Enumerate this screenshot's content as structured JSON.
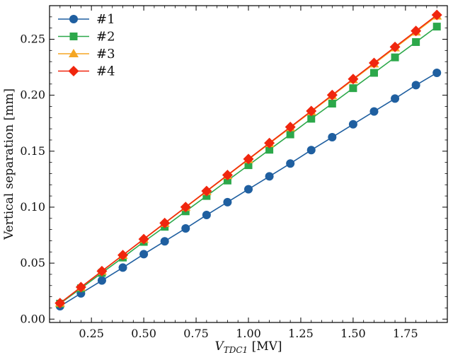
{
  "chart_data": {
    "type": "line",
    "xlabel_main": "V",
    "xlabel_sub": "TDC1",
    "xlabel_unit": " [MV]",
    "ylabel": "Vertical separation [mm]",
    "xlim": [
      0.05,
      1.95
    ],
    "ylim": [
      -0.003,
      0.28
    ],
    "xticks": [
      "0.25",
      "0.50",
      "0.75",
      "1.00",
      "1.25",
      "1.50",
      "1.75"
    ],
    "xtick_values": [
      0.25,
      0.5,
      0.75,
      1.0,
      1.25,
      1.5,
      1.75
    ],
    "yticks": [
      "0.00",
      "0.05",
      "0.10",
      "0.15",
      "0.20",
      "0.25"
    ],
    "ytick_values": [
      0.0,
      0.05,
      0.1,
      0.15,
      0.2,
      0.25
    ],
    "grid": false,
    "legend_position": "top-left",
    "x": [
      0.1,
      0.2,
      0.3,
      0.4,
      0.5,
      0.6,
      0.7,
      0.8,
      0.9,
      1.0,
      1.1,
      1.2,
      1.3,
      1.4,
      1.5,
      1.6,
      1.7,
      1.8,
      1.9
    ],
    "series": [
      {
        "name": "#1",
        "color": "#1f5fa0",
        "marker": "circle",
        "values": [
          0.0115,
          0.023,
          0.0345,
          0.046,
          0.058,
          0.0695,
          0.081,
          0.093,
          0.1045,
          0.116,
          0.1275,
          0.139,
          0.151,
          0.1625,
          0.174,
          0.1855,
          0.197,
          0.209,
          0.22
        ]
      },
      {
        "name": "#2",
        "color": "#2ca84a",
        "marker": "square",
        "values": [
          0.0138,
          0.0275,
          0.0413,
          0.055,
          0.069,
          0.0825,
          0.0963,
          0.11,
          0.1238,
          0.1375,
          0.1513,
          0.165,
          0.179,
          0.1925,
          0.2063,
          0.22,
          0.2338,
          0.2475,
          0.2613
        ]
      },
      {
        "name": "#3",
        "color": "#f5a623",
        "marker": "triangle",
        "values": [
          0.0143,
          0.0285,
          0.0428,
          0.057,
          0.0713,
          0.0855,
          0.0998,
          0.114,
          0.1283,
          0.1425,
          0.1568,
          0.171,
          0.1853,
          0.1995,
          0.2138,
          0.228,
          0.2423,
          0.2565,
          0.2708
        ]
      },
      {
        "name": "#4",
        "color": "#f0260e",
        "marker": "diamond",
        "values": [
          0.0143,
          0.0286,
          0.0429,
          0.0572,
          0.0715,
          0.0858,
          0.1001,
          0.1144,
          0.1287,
          0.143,
          0.1573,
          0.1716,
          0.1859,
          0.2002,
          0.2145,
          0.2288,
          0.2431,
          0.2574,
          0.2717
        ]
      }
    ]
  }
}
